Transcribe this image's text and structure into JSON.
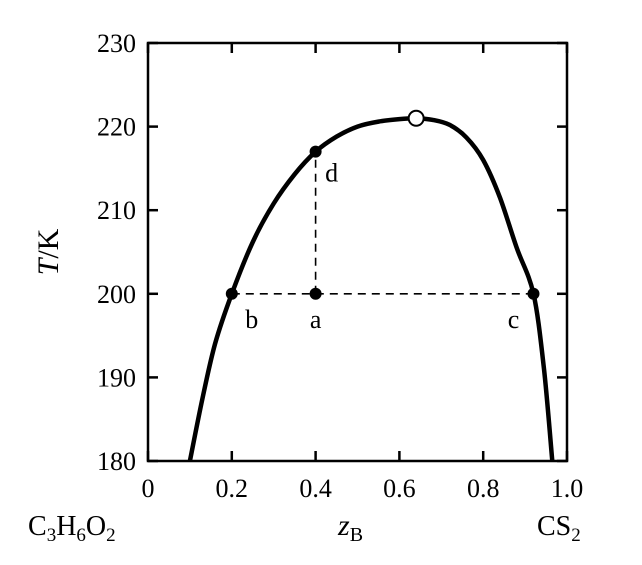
{
  "chart_data": {
    "type": "line",
    "title": "",
    "xlabel_main": "z",
    "xlabel_sub": "B",
    "ylabel_main": "T",
    "ylabel_rest": "/K",
    "xlim": [
      0,
      1
    ],
    "ylim": [
      180,
      230
    ],
    "x_ticks": [
      0,
      0.2,
      0.4,
      0.6,
      0.8,
      1.0
    ],
    "x_tick_labels": [
      "0",
      "0.2",
      "0.4",
      "0.6",
      "0.8",
      "1.0"
    ],
    "y_ticks": [
      180,
      190,
      200,
      210,
      220,
      230
    ],
    "y_tick_labels": [
      "180",
      "190",
      "200",
      "210",
      "220",
      "230"
    ],
    "grid": false,
    "series": [
      {
        "x": [
          0.1,
          0.13,
          0.16,
          0.2,
          0.25,
          0.3,
          0.35,
          0.4,
          0.45,
          0.5,
          0.55,
          0.6,
          0.64,
          0.68,
          0.72,
          0.76,
          0.8,
          0.84,
          0.88,
          0.92,
          0.945,
          0.965
        ],
        "y": [
          180,
          187.5,
          194,
          200,
          206.2,
          210.8,
          214.3,
          217,
          218.8,
          220,
          220.6,
          220.9,
          221,
          220.8,
          220.2,
          218.7,
          216,
          211.5,
          205.5,
          200,
          191,
          180
        ]
      }
    ],
    "critical_point": {
      "x": 0.64,
      "y": 221
    },
    "points": [
      {
        "label": "a",
        "x": 0.4,
        "y": 200
      },
      {
        "label": "b",
        "x": 0.2,
        "y": 200
      },
      {
        "label": "c",
        "x": 0.92,
        "y": 200
      },
      {
        "label": "d",
        "x": 0.4,
        "y": 217
      }
    ],
    "tie_lines": [
      {
        "x1": 0.2,
        "y1": 200,
        "x2": 0.92,
        "y2": 200
      },
      {
        "x1": 0.4,
        "y1": 200,
        "x2": 0.4,
        "y2": 217
      }
    ]
  },
  "components": {
    "left": {
      "c": "C",
      "n1": "3",
      "h": "H",
      "n2": "6",
      "o": "O",
      "n3": "2"
    },
    "right": {
      "cs": "CS",
      "n": "2"
    }
  }
}
